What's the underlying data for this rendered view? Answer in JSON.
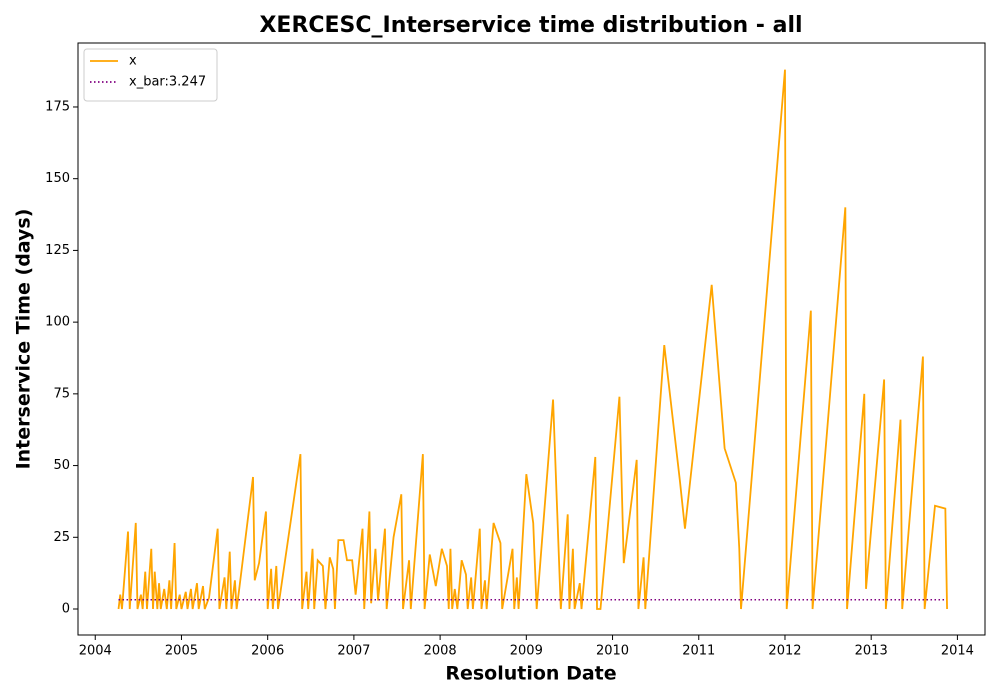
{
  "chart_data": {
    "type": "line",
    "title": "XERCESC_Interservice time distribution - all",
    "xlabel": "Resolution Date",
    "ylabel": "Interservice Time (days)",
    "xlim": [
      2003.8,
      2014.32
    ],
    "ylim": [
      -9.06,
      197.3
    ],
    "xticks": [
      2004,
      2005,
      2006,
      2007,
      2008,
      2009,
      2010,
      2011,
      2012,
      2013,
      2014
    ],
    "yticks": [
      0,
      25,
      50,
      75,
      100,
      125,
      150,
      175
    ],
    "legend": "upper left",
    "series": [
      {
        "name": "x",
        "color": "#ffa500",
        "style": "solid",
        "x": [
          2004.27,
          2004.29,
          2004.31,
          2004.38,
          2004.4,
          2004.47,
          2004.49,
          2004.53,
          2004.55,
          2004.58,
          2004.6,
          2004.65,
          2004.67,
          2004.69,
          2004.72,
          2004.74,
          2004.76,
          2004.8,
          2004.83,
          2004.86,
          2004.88,
          2004.92,
          2004.94,
          2004.98,
          2005.0,
          2005.05,
          2005.07,
          2005.11,
          2005.13,
          2005.18,
          2005.2,
          2005.25,
          2005.27,
          2005.32,
          2005.42,
          2005.44,
          2005.5,
          2005.52,
          2005.56,
          2005.58,
          2005.62,
          2005.64,
          2005.67,
          2005.83,
          2005.85,
          2005.9,
          2005.98,
          2006.0,
          2006.04,
          2006.06,
          2006.1,
          2006.12,
          2006.38,
          2006.4,
          2006.45,
          2006.47,
          2006.52,
          2006.54,
          2006.58,
          2006.64,
          2006.67,
          2006.72,
          2006.76,
          2006.78,
          2006.82,
          2006.88,
          2006.92,
          2006.98,
          2007.02,
          2007.1,
          2007.12,
          2007.18,
          2007.2,
          2007.25,
          2007.28,
          2007.36,
          2007.38,
          2007.46,
          2007.55,
          2007.57,
          2007.64,
          2007.66,
          2007.8,
          2007.82,
          2007.88,
          2007.95,
          2008.02,
          2008.08,
          2008.1,
          2008.12,
          2008.14,
          2008.17,
          2008.2,
          2008.25,
          2008.3,
          2008.32,
          2008.36,
          2008.38,
          2008.46,
          2008.48,
          2008.52,
          2008.54,
          2008.62,
          2008.7,
          2008.72,
          2008.84,
          2008.86,
          2008.89,
          2008.91,
          2009.0,
          2009.08,
          2009.12,
          2009.31,
          2009.4,
          2009.48,
          2009.5,
          2009.54,
          2009.56,
          2009.62,
          2009.64,
          2009.8,
          2009.82,
          2009.86,
          2010.08,
          2010.13,
          2010.28,
          2010.3,
          2010.36,
          2010.38,
          2010.6,
          2010.78,
          2010.84,
          2011.15,
          2011.3,
          2011.43,
          2011.47,
          2011.49,
          2012.0,
          2012.02,
          2012.3,
          2012.32,
          2012.7,
          2012.72,
          2012.92,
          2012.94,
          2013.15,
          2013.17,
          2013.34,
          2013.36,
          2013.6,
          2013.62,
          2013.74,
          2013.86,
          2013.88
        ],
        "values": [
          0,
          5,
          0,
          27,
          0,
          30,
          0,
          5,
          0,
          13,
          0,
          21,
          0,
          13,
          0,
          9,
          0,
          7,
          0,
          10,
          0,
          23,
          0,
          5,
          0,
          6,
          0,
          7,
          0,
          9,
          0,
          8,
          0,
          4,
          28,
          0,
          11,
          0,
          20,
          0,
          10,
          0,
          7,
          46,
          10,
          16,
          34,
          0,
          14,
          0,
          15,
          0,
          54,
          0,
          13,
          0,
          21,
          0,
          17,
          15,
          0,
          18,
          14,
          0,
          24,
          24,
          17,
          17,
          5,
          28,
          0,
          34,
          2,
          21,
          3,
          28,
          0,
          25,
          40,
          0,
          17,
          0,
          54,
          0,
          19,
          8,
          21,
          15,
          0,
          21,
          0,
          7,
          0,
          17,
          12,
          0,
          11,
          0,
          28,
          0,
          10,
          0,
          30,
          23,
          0,
          21,
          0,
          11,
          0,
          47,
          30,
          0,
          73,
          0,
          33,
          0,
          21,
          0,
          9,
          0,
          53,
          0,
          0,
          74,
          16,
          52,
          0,
          18,
          0,
          92,
          45,
          28,
          113,
          56,
          44,
          21,
          0,
          188,
          0,
          104,
          0,
          140,
          0,
          75,
          7,
          80,
          0,
          66,
          0,
          88,
          0,
          36,
          35,
          0
        ]
      },
      {
        "name": "x_bar:3.247",
        "color": "#800080",
        "style": "dotted",
        "x": [
          2004.27,
          2013.86
        ],
        "values": [
          3.247,
          3.247
        ]
      }
    ]
  }
}
